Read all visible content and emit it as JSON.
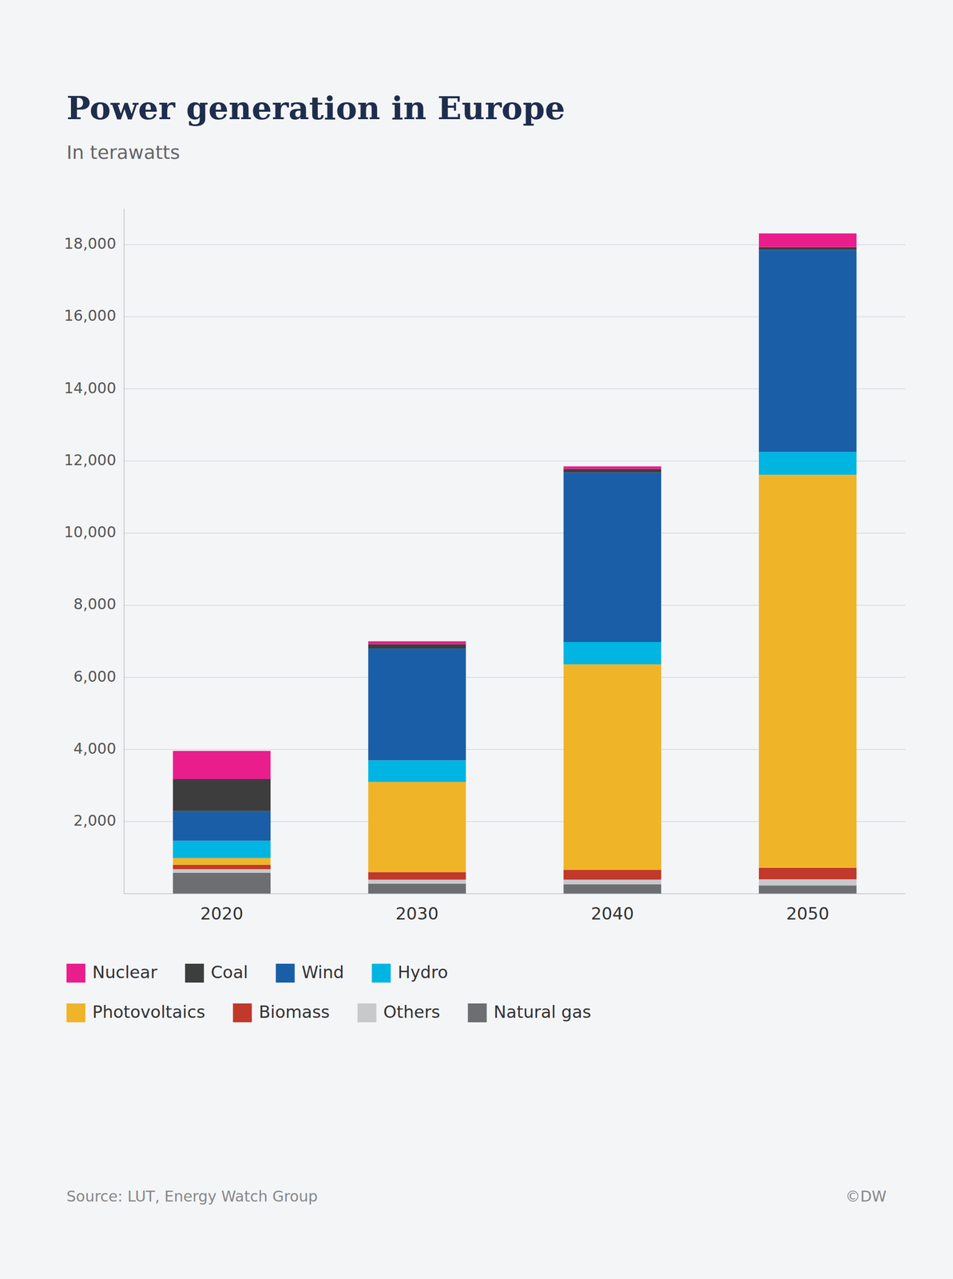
{
  "chart_data": {
    "type": "bar",
    "stacked": true,
    "title": "Power generation in Europe",
    "subtitle": "In terawatts",
    "annotations": [
      "Source: LUT, Energy Watch Group",
      "©DW"
    ],
    "categories": [
      "2020",
      "2030",
      "2040",
      "2050"
    ],
    "series": [
      {
        "name": "Natural gas",
        "color": "#6d6e71",
        "values": [
          580,
          280,
          260,
          230
        ]
      },
      {
        "name": "Others",
        "color": "#c8c9cb",
        "values": [
          100,
          110,
          130,
          170
        ]
      },
      {
        "name": "Biomass",
        "color": "#c0392b",
        "values": [
          120,
          210,
          270,
          320
        ]
      },
      {
        "name": "Photovoltaics",
        "color": "#f0b429",
        "values": [
          190,
          2500,
          5700,
          10900
        ]
      },
      {
        "name": "Hydro",
        "color": "#00b5e2",
        "values": [
          480,
          600,
          620,
          630
        ]
      },
      {
        "name": "Wind",
        "color": "#1a5ea8",
        "values": [
          820,
          3100,
          4700,
          5600
        ]
      },
      {
        "name": "Coal",
        "color": "#3d3d3d",
        "values": [
          890,
          120,
          100,
          80
        ]
      },
      {
        "name": "Nuclear",
        "color": "#e91e8c",
        "values": [
          780,
          80,
          70,
          380
        ]
      }
    ],
    "ylim": [
      0,
      19000
    ],
    "yticks": [
      {
        "value": 2000,
        "label": "2,000"
      },
      {
        "value": 4000,
        "label": "4,000"
      },
      {
        "value": 6000,
        "label": "6,000"
      },
      {
        "value": 8000,
        "label": "8,000"
      },
      {
        "value": 10000,
        "label": "10,000"
      },
      {
        "value": 12000,
        "label": "12,000"
      },
      {
        "value": 14000,
        "label": "14,000"
      },
      {
        "value": 16000,
        "label": "16,000"
      },
      {
        "value": 18000,
        "label": "18,000"
      }
    ],
    "grid": true,
    "legend": "bottom"
  }
}
